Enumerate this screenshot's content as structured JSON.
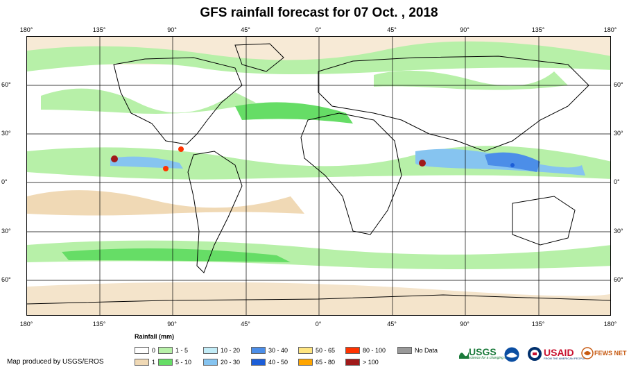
{
  "title": "GFS rainfall forecast for 07 Oct. , 2018",
  "axes": {
    "lon_labels": [
      "180°",
      "135°",
      "90°",
      "45°",
      "0°",
      "45°",
      "90°",
      "135°",
      "180°"
    ],
    "lat_labels": [
      "60°",
      "30°",
      "0°",
      "30°",
      "60°"
    ]
  },
  "legend": {
    "title": "Rainfall (mm)",
    "items": [
      {
        "label": "0",
        "color": "#ffffff"
      },
      {
        "label": "1",
        "color": "#f0d9b5"
      },
      {
        "label": "1 - 5",
        "color": "#b7f0a8"
      },
      {
        "label": "5 - 10",
        "color": "#66dd66"
      },
      {
        "label": "10 - 20",
        "color": "#c2ecf7"
      },
      {
        "label": "20 - 30",
        "color": "#86c4f0"
      },
      {
        "label": "30 - 40",
        "color": "#4c8ee8"
      },
      {
        "label": "40 - 50",
        "color": "#1c5ed8"
      },
      {
        "label": "50 - 65",
        "color": "#ffe580"
      },
      {
        "label": "65 - 80",
        "color": "#ffa500"
      },
      {
        "label": "80 - 100",
        "color": "#ff3300"
      },
      {
        "label": "> 100",
        "color": "#a01a1a"
      },
      {
        "label": "No Data",
        "color": "#999999"
      }
    ]
  },
  "credit": "Map produced by USGS/EROS",
  "logos": [
    {
      "name": "usgs-logo",
      "text": "USGS",
      "tagline": "science for a changing world"
    },
    {
      "name": "noaa-logo",
      "text": ""
    },
    {
      "name": "usaid-logo",
      "text": "USAID",
      "tagline": "FROM THE AMERICAN PEOPLE"
    },
    {
      "name": "fewsnet-logo",
      "text": "FEWS NET"
    }
  ]
}
